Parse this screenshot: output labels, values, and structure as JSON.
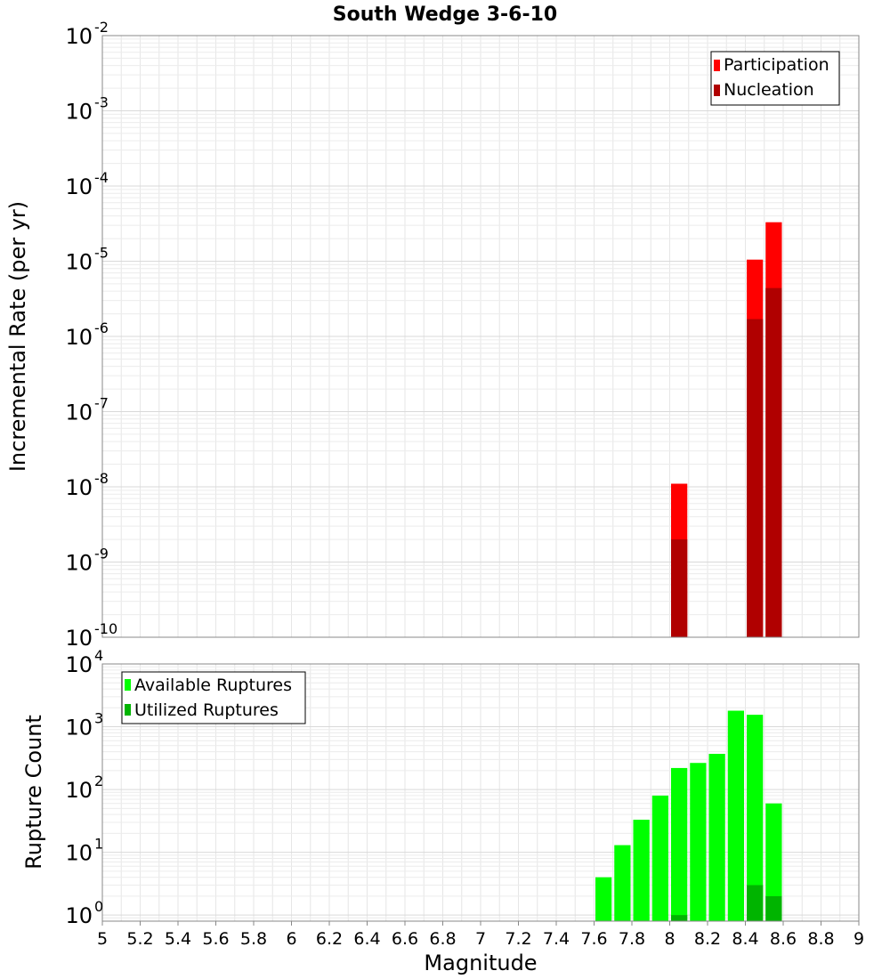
{
  "chart_data": [
    {
      "type": "bar",
      "title": "South Wedge 3-6-10",
      "xlabel": "",
      "ylabel": "Incremental Rate (per yr)",
      "yscale": "log",
      "xlim": [
        5,
        9
      ],
      "ylim": [
        1e-10,
        0.01
      ],
      "ytick_exponents": [
        -2,
        -3,
        -4,
        -5,
        -6,
        -7,
        -8,
        -9,
        -10
      ],
      "grid": true,
      "bar_width": 0.1,
      "legend_position": "top-right",
      "colors": {
        "Participation": "#ff0000",
        "Nucleation": "#b00000"
      },
      "series": [
        {
          "name": "Participation",
          "x": [
            8.05,
            8.45,
            8.55
          ],
          "values": [
            1.1e-08,
            1.05e-05,
            3.3e-05
          ]
        },
        {
          "name": "Nucleation",
          "x": [
            8.05,
            8.45,
            8.55
          ],
          "values": [
            2e-09,
            1.7e-06,
            4.4e-06
          ]
        }
      ]
    },
    {
      "type": "bar",
      "title": "",
      "xlabel": "Magnitude",
      "ylabel": "Rupture Count",
      "yscale": "log",
      "xlim": [
        5,
        9
      ],
      "ylim": [
        0.8,
        10000
      ],
      "ytick_exponents": [
        4,
        3,
        2,
        1,
        0
      ],
      "xticks": [
        "5",
        "5.2",
        "5.4",
        "5.6",
        "5.8",
        "6",
        "6.2",
        "6.4",
        "6.6",
        "6.8",
        "7",
        "7.2",
        "7.4",
        "7.6",
        "7.8",
        "8",
        "8.2",
        "8.4",
        "8.6",
        "8.8",
        "9"
      ],
      "grid": true,
      "bar_width": 0.1,
      "legend_position": "top-left",
      "colors": {
        "Available Ruptures": "#00ff00",
        "Utilized Ruptures": "#00b400"
      },
      "series": [
        {
          "name": "Available Ruptures",
          "x": [
            7.65,
            7.75,
            7.85,
            7.95,
            8.05,
            8.15,
            8.25,
            8.35,
            8.45,
            8.55
          ],
          "values": [
            4,
            13,
            33,
            80,
            220,
            265,
            370,
            1800,
            1550,
            60
          ]
        },
        {
          "name": "Utilized Ruptures",
          "x": [
            8.05,
            8.45,
            8.55
          ],
          "values": [
            1,
            3,
            2
          ]
        }
      ]
    }
  ]
}
